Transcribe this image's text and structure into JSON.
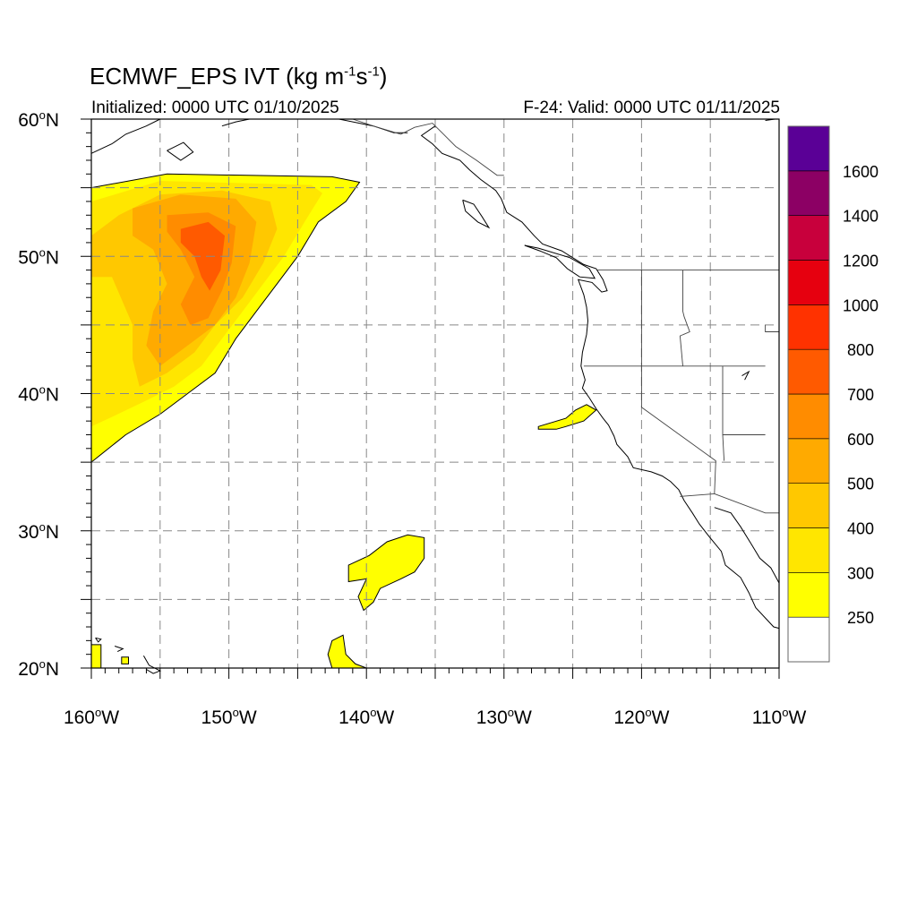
{
  "title": {
    "main": "ECMWF_EPS IVT (kg m",
    "exp1": "-1",
    "mid": "s",
    "exp2": "-1",
    "end": ")"
  },
  "init_text": "Initialized: 0000 UTC 01/10/2025",
  "valid_text": "F-24: Valid: 0000 UTC 01/11/2025",
  "chart_data": {
    "type": "heatmap",
    "variable": "IVT",
    "units": "kg m-1 s-1",
    "lon_range": [
      -160,
      -110
    ],
    "lat_range": [
      20,
      60
    ],
    "x_ticks": [
      {
        "lon": -160,
        "label": "160°W"
      },
      {
        "lon": -150,
        "label": "150°W"
      },
      {
        "lon": -140,
        "label": "140°W"
      },
      {
        "lon": -130,
        "label": "130°W"
      },
      {
        "lon": -120,
        "label": "120°W"
      },
      {
        "lon": -110,
        "label": "110°W"
      }
    ],
    "y_ticks": [
      {
        "lat": 60,
        "label": "60°N"
      },
      {
        "lat": 50,
        "label": "50°N"
      },
      {
        "lat": 40,
        "label": "40°N"
      },
      {
        "lat": 30,
        "label": "30°N"
      },
      {
        "lat": 20,
        "label": "20°N"
      }
    ],
    "grid": true,
    "grid_spacing_deg": 5,
    "colorbar": {
      "levels": [
        250,
        300,
        400,
        500,
        600,
        700,
        800,
        1000,
        1200,
        1400,
        1600
      ],
      "labels": [
        "250",
        "300",
        "400",
        "500",
        "600",
        "700",
        "800",
        "1000",
        "1200",
        "1400",
        "1600"
      ],
      "colors": [
        "#ffffff",
        "#ffff00",
        "#ffe600",
        "#ffc800",
        "#ffaa00",
        "#ff8c00",
        "#ff5a00",
        "#ff3200",
        "#e6000f",
        "#c8003c",
        "#8c0064",
        "#5a0096"
      ]
    },
    "ivt_regions": [
      {
        "name": "main-atmospheric-river",
        "level": 250,
        "polygon": [
          [
            -160,
            55
          ],
          [
            -154.5,
            56
          ],
          [
            -142.5,
            55.8
          ],
          [
            -140.5,
            55.4
          ],
          [
            -141.5,
            54
          ],
          [
            -143.5,
            52.5
          ],
          [
            -145,
            50
          ],
          [
            -146.5,
            48
          ],
          [
            -148,
            46
          ],
          [
            -149.5,
            44
          ],
          [
            -151,
            41.5
          ],
          [
            -153,
            40
          ],
          [
            -155,
            38.5
          ],
          [
            -157.5,
            37
          ],
          [
            -160,
            35
          ]
        ]
      },
      {
        "name": "main-core-300",
        "level": 300,
        "polygon": [
          [
            -160,
            54
          ],
          [
            -155,
            55.5
          ],
          [
            -144,
            55.2
          ],
          [
            -143.2,
            54.6
          ],
          [
            -144.5,
            52.5
          ],
          [
            -146,
            50
          ],
          [
            -147.5,
            48
          ],
          [
            -149,
            46
          ],
          [
            -150.5,
            44
          ],
          [
            -152,
            42
          ],
          [
            -154,
            40.5
          ],
          [
            -156,
            39.5
          ],
          [
            -158.5,
            38.3
          ],
          [
            -160,
            37.6
          ]
        ]
      },
      {
        "name": "main-core-400",
        "level": 400,
        "polygon": [
          [
            -160,
            51.5
          ],
          [
            -158,
            53
          ],
          [
            -155,
            54.5
          ],
          [
            -150.5,
            54.8
          ],
          [
            -147,
            54
          ],
          [
            -146.5,
            52
          ],
          [
            -147.5,
            49.5
          ],
          [
            -149,
            47
          ],
          [
            -151,
            45
          ],
          [
            -152.5,
            43
          ],
          [
            -154.5,
            41.5
          ],
          [
            -156.5,
            40.5
          ],
          [
            -157,
            42.5
          ],
          [
            -157,
            45
          ],
          [
            -158.5,
            48.5
          ],
          [
            -160,
            48.5
          ]
        ]
      },
      {
        "name": "main-core-500",
        "level": 500,
        "polygon": [
          [
            -157,
            53.5
          ],
          [
            -153.5,
            54.5
          ],
          [
            -149.5,
            54.2
          ],
          [
            -148,
            52.5
          ],
          [
            -148.5,
            49.5
          ],
          [
            -149.5,
            47
          ],
          [
            -151,
            45
          ],
          [
            -153,
            43.5
          ],
          [
            -155,
            42
          ],
          [
            -156,
            43.5
          ],
          [
            -155.5,
            46
          ],
          [
            -154.5,
            48
          ],
          [
            -155.5,
            50.5
          ],
          [
            -157,
            51.5
          ]
        ]
      },
      {
        "name": "main-core-600",
        "level": 600,
        "polygon": [
          [
            -154.5,
            53
          ],
          [
            -151.5,
            53.2
          ],
          [
            -149.5,
            52.2
          ],
          [
            -149.8,
            49.5
          ],
          [
            -150.5,
            47.5
          ],
          [
            -151.5,
            45.5
          ],
          [
            -152.8,
            45
          ],
          [
            -153.5,
            46.5
          ],
          [
            -152.5,
            48.5
          ],
          [
            -153.5,
            50.5
          ],
          [
            -154.5,
            51.8
          ]
        ]
      },
      {
        "name": "main-core-700",
        "level": 700,
        "polygon": [
          [
            -153.5,
            52
          ],
          [
            -151.5,
            52.5
          ],
          [
            -150.3,
            51.5
          ],
          [
            -150.6,
            49
          ],
          [
            -151.4,
            47.5
          ],
          [
            -152,
            48.5
          ],
          [
            -152.5,
            50
          ],
          [
            -153.5,
            51
          ]
        ]
      },
      {
        "name": "coastal-ivt-patch",
        "level": 250,
        "polygon": [
          [
            -127.5,
            37.6
          ],
          [
            -125.5,
            38.2
          ],
          [
            -124.8,
            38.8
          ],
          [
            -124,
            39.2
          ],
          [
            -123.3,
            38.8
          ],
          [
            -124.2,
            38
          ],
          [
            -125.5,
            37.6
          ],
          [
            -126.2,
            37.4
          ],
          [
            -127.5,
            37.4
          ]
        ]
      },
      {
        "name": "central-pacific-patch",
        "level": 250,
        "polygon": [
          [
            -141.3,
            27.5
          ],
          [
            -139.8,
            28.2
          ],
          [
            -138.5,
            29.2
          ],
          [
            -137,
            29.7
          ],
          [
            -135.8,
            29.5
          ],
          [
            -135.8,
            28
          ],
          [
            -136.5,
            27
          ],
          [
            -137.5,
            26.5
          ],
          [
            -139,
            25.8
          ],
          [
            -139.5,
            24.8
          ],
          [
            -140.2,
            24.2
          ],
          [
            -140.6,
            25.2
          ],
          [
            -140,
            26.5
          ],
          [
            -141.3,
            26.3
          ]
        ]
      },
      {
        "name": "southern-patch",
        "level": 250,
        "polygon": [
          [
            -142.5,
            22
          ],
          [
            -141.7,
            22.4
          ],
          [
            -141.5,
            21
          ],
          [
            -140.8,
            20.3
          ],
          [
            -140,
            20
          ],
          [
            -142.5,
            20
          ],
          [
            -142.8,
            21
          ]
        ]
      },
      {
        "name": "hawaii-patch-west",
        "level": 250,
        "polygon": [
          [
            -160,
            21.7
          ],
          [
            -159.3,
            21.7
          ],
          [
            -159.3,
            20
          ],
          [
            -160,
            20
          ]
        ]
      },
      {
        "name": "hawaii-patch-east",
        "level": 250,
        "polygon": [
          [
            -157.8,
            20.8
          ],
          [
            -157.3,
            20.8
          ],
          [
            -157.3,
            20.3
          ],
          [
            -157.8,
            20.3
          ]
        ]
      }
    ]
  },
  "geo": {
    "coastline": [
      [
        [
          -135,
          59.5
        ],
        [
          -136,
          58.8
        ],
        [
          -135.2,
          58.2
        ],
        [
          -134.5,
          57.5
        ],
        [
          -133.2,
          57
        ],
        [
          -132.5,
          56.3
        ],
        [
          -131.7,
          55.6
        ],
        [
          -130.6,
          54.8
        ],
        [
          -130.2,
          54.2
        ],
        [
          -129.8,
          53.2
        ],
        [
          -128.7,
          52.5
        ],
        [
          -127.8,
          51.5
        ],
        [
          -127.2,
          50.9
        ],
        [
          -125.8,
          50.4
        ],
        [
          -125,
          49.9
        ],
        [
          -124.2,
          49.4
        ],
        [
          -123.3,
          49.1
        ],
        [
          -122.8,
          48.3
        ],
        [
          -122.5,
          47.5
        ],
        [
          -122.9,
          47.4
        ],
        [
          -123.6,
          48.1
        ],
        [
          -124.6,
          48.3
        ],
        [
          -124.2,
          47.2
        ],
        [
          -124,
          46.3
        ],
        [
          -123.9,
          45.3
        ],
        [
          -124,
          44.3
        ],
        [
          -124.3,
          43
        ],
        [
          -124.4,
          42
        ],
        [
          -124.1,
          41
        ],
        [
          -124.3,
          40.4
        ],
        [
          -123.8,
          39.7
        ],
        [
          -123.3,
          38.9
        ],
        [
          -122.8,
          38.2
        ],
        [
          -122.4,
          37.7
        ],
        [
          -122,
          36.9
        ],
        [
          -121.8,
          36.3
        ],
        [
          -121,
          35.4
        ],
        [
          -120.6,
          34.6
        ],
        [
          -119.3,
          34.3
        ],
        [
          -118.5,
          34
        ],
        [
          -117.9,
          33.6
        ],
        [
          -117.3,
          33
        ],
        [
          -116.9,
          32.2
        ],
        [
          -116.3,
          31.3
        ],
        [
          -115.8,
          30.5
        ],
        [
          -115.1,
          29.6
        ],
        [
          -114.2,
          28.5
        ],
        [
          -113.9,
          27.5
        ],
        [
          -112.8,
          26.6
        ],
        [
          -112.2,
          25.5
        ],
        [
          -111.7,
          24.4
        ],
        [
          -110.4,
          23
        ],
        [
          -110,
          22.9
        ]
      ],
      [
        [
          -114.7,
          31.7
        ],
        [
          -113.5,
          31.3
        ],
        [
          -112.8,
          30.3
        ],
        [
          -112,
          29
        ],
        [
          -111.4,
          28
        ],
        [
          -110.6,
          27.3
        ],
        [
          -110,
          26.2
        ]
      ],
      [
        [
          -128.5,
          50.8
        ],
        [
          -127.4,
          50.4
        ],
        [
          -126.2,
          49.9
        ],
        [
          -125.4,
          49.1
        ],
        [
          -124.5,
          48.5
        ],
        [
          -123.4,
          48.4
        ],
        [
          -123.8,
          49.1
        ],
        [
          -125.2,
          49.9
        ],
        [
          -127.5,
          50.6
        ],
        [
          -128.5,
          50.8
        ]
      ],
      [
        [
          -133,
          54.1
        ],
        [
          -132.2,
          53.8
        ],
        [
          -131.6,
          52.9
        ],
        [
          -131.1,
          52.1
        ],
        [
          -131.9,
          52.5
        ],
        [
          -132.8,
          53.3
        ],
        [
          -133,
          54.1
        ]
      ],
      [
        [
          -160,
          57.5
        ],
        [
          -158.5,
          58.2
        ],
        [
          -157.5,
          58.9
        ],
        [
          -156,
          59.5
        ],
        [
          -155,
          60
        ]
      ],
      [
        [
          -154.5,
          57.7
        ],
        [
          -153.3,
          58.3
        ],
        [
          -152.6,
          57.6
        ],
        [
          -153.5,
          57
        ],
        [
          -154.5,
          57.7
        ]
      ],
      [
        [
          -150.5,
          59.5
        ],
        [
          -149.5,
          59.8
        ],
        [
          -148.5,
          60
        ]
      ],
      [
        [
          -142,
          60
        ],
        [
          -140.5,
          59.7
        ],
        [
          -139.5,
          59.5
        ],
        [
          -138,
          59
        ],
        [
          -137,
          59
        ]
      ],
      [
        [
          -156.2,
          20.9
        ],
        [
          -155.8,
          20.2
        ],
        [
          -155,
          19.8
        ],
        [
          -155.5,
          19.6
        ],
        [
          -156,
          19.9
        ]
      ],
      [
        [
          -158.3,
          21.6
        ],
        [
          -157.7,
          21.4
        ],
        [
          -158.1,
          21.2
        ]
      ],
      [
        [
          -159.7,
          22.2
        ],
        [
          -159.3,
          22.1
        ],
        [
          -159.5,
          21.9
        ],
        [
          -159.7,
          22.2
        ]
      ],
      [
        [
          -111,
          59.9
        ],
        [
          -110.3,
          60
        ]
      ],
      [
        [
          -112.7,
          41.3
        ],
        [
          -112.2,
          41.6
        ],
        [
          -112.5,
          41
        ]
      ]
    ],
    "borders": [
      [
        [
          -141,
          60
        ],
        [
          -139.5,
          59.5
        ],
        [
          -137.5,
          58.9
        ],
        [
          -136.5,
          59.4
        ],
        [
          -135.2,
          59.7
        ],
        [
          -134.5,
          59
        ],
        [
          -133.5,
          58
        ],
        [
          -132,
          57
        ],
        [
          -130.5,
          55.9
        ],
        [
          -130,
          55.9
        ]
      ],
      [
        [
          -123.2,
          49
        ],
        [
          -110,
          49
        ]
      ],
      [
        [
          -124.2,
          42
        ],
        [
          -111,
          42
        ]
      ],
      [
        [
          -120,
          49
        ],
        [
          -120,
          42
        ],
        [
          -120,
          39
        ],
        [
          -114.6,
          35.1
        ],
        [
          -114.7,
          32.7
        ],
        [
          -111,
          31.3
        ],
        [
          -110,
          31.3
        ]
      ],
      [
        [
          -117.2,
          32.5
        ],
        [
          -114.7,
          32.7
        ]
      ],
      [
        [
          -117,
          49
        ],
        [
          -117,
          46
        ],
        [
          -116.9,
          45.6
        ],
        [
          -116.5,
          44.5
        ],
        [
          -117.2,
          44.2
        ],
        [
          -117,
          42
        ]
      ],
      [
        [
          -114.1,
          42
        ],
        [
          -114.1,
          37
        ],
        [
          -114,
          35.1
        ]
      ],
      [
        [
          -111,
          45
        ],
        [
          -111,
          44.5
        ],
        [
          -110,
          44.5
        ]
      ],
      [
        [
          -114.1,
          37
        ],
        [
          -111,
          37
        ]
      ]
    ]
  }
}
